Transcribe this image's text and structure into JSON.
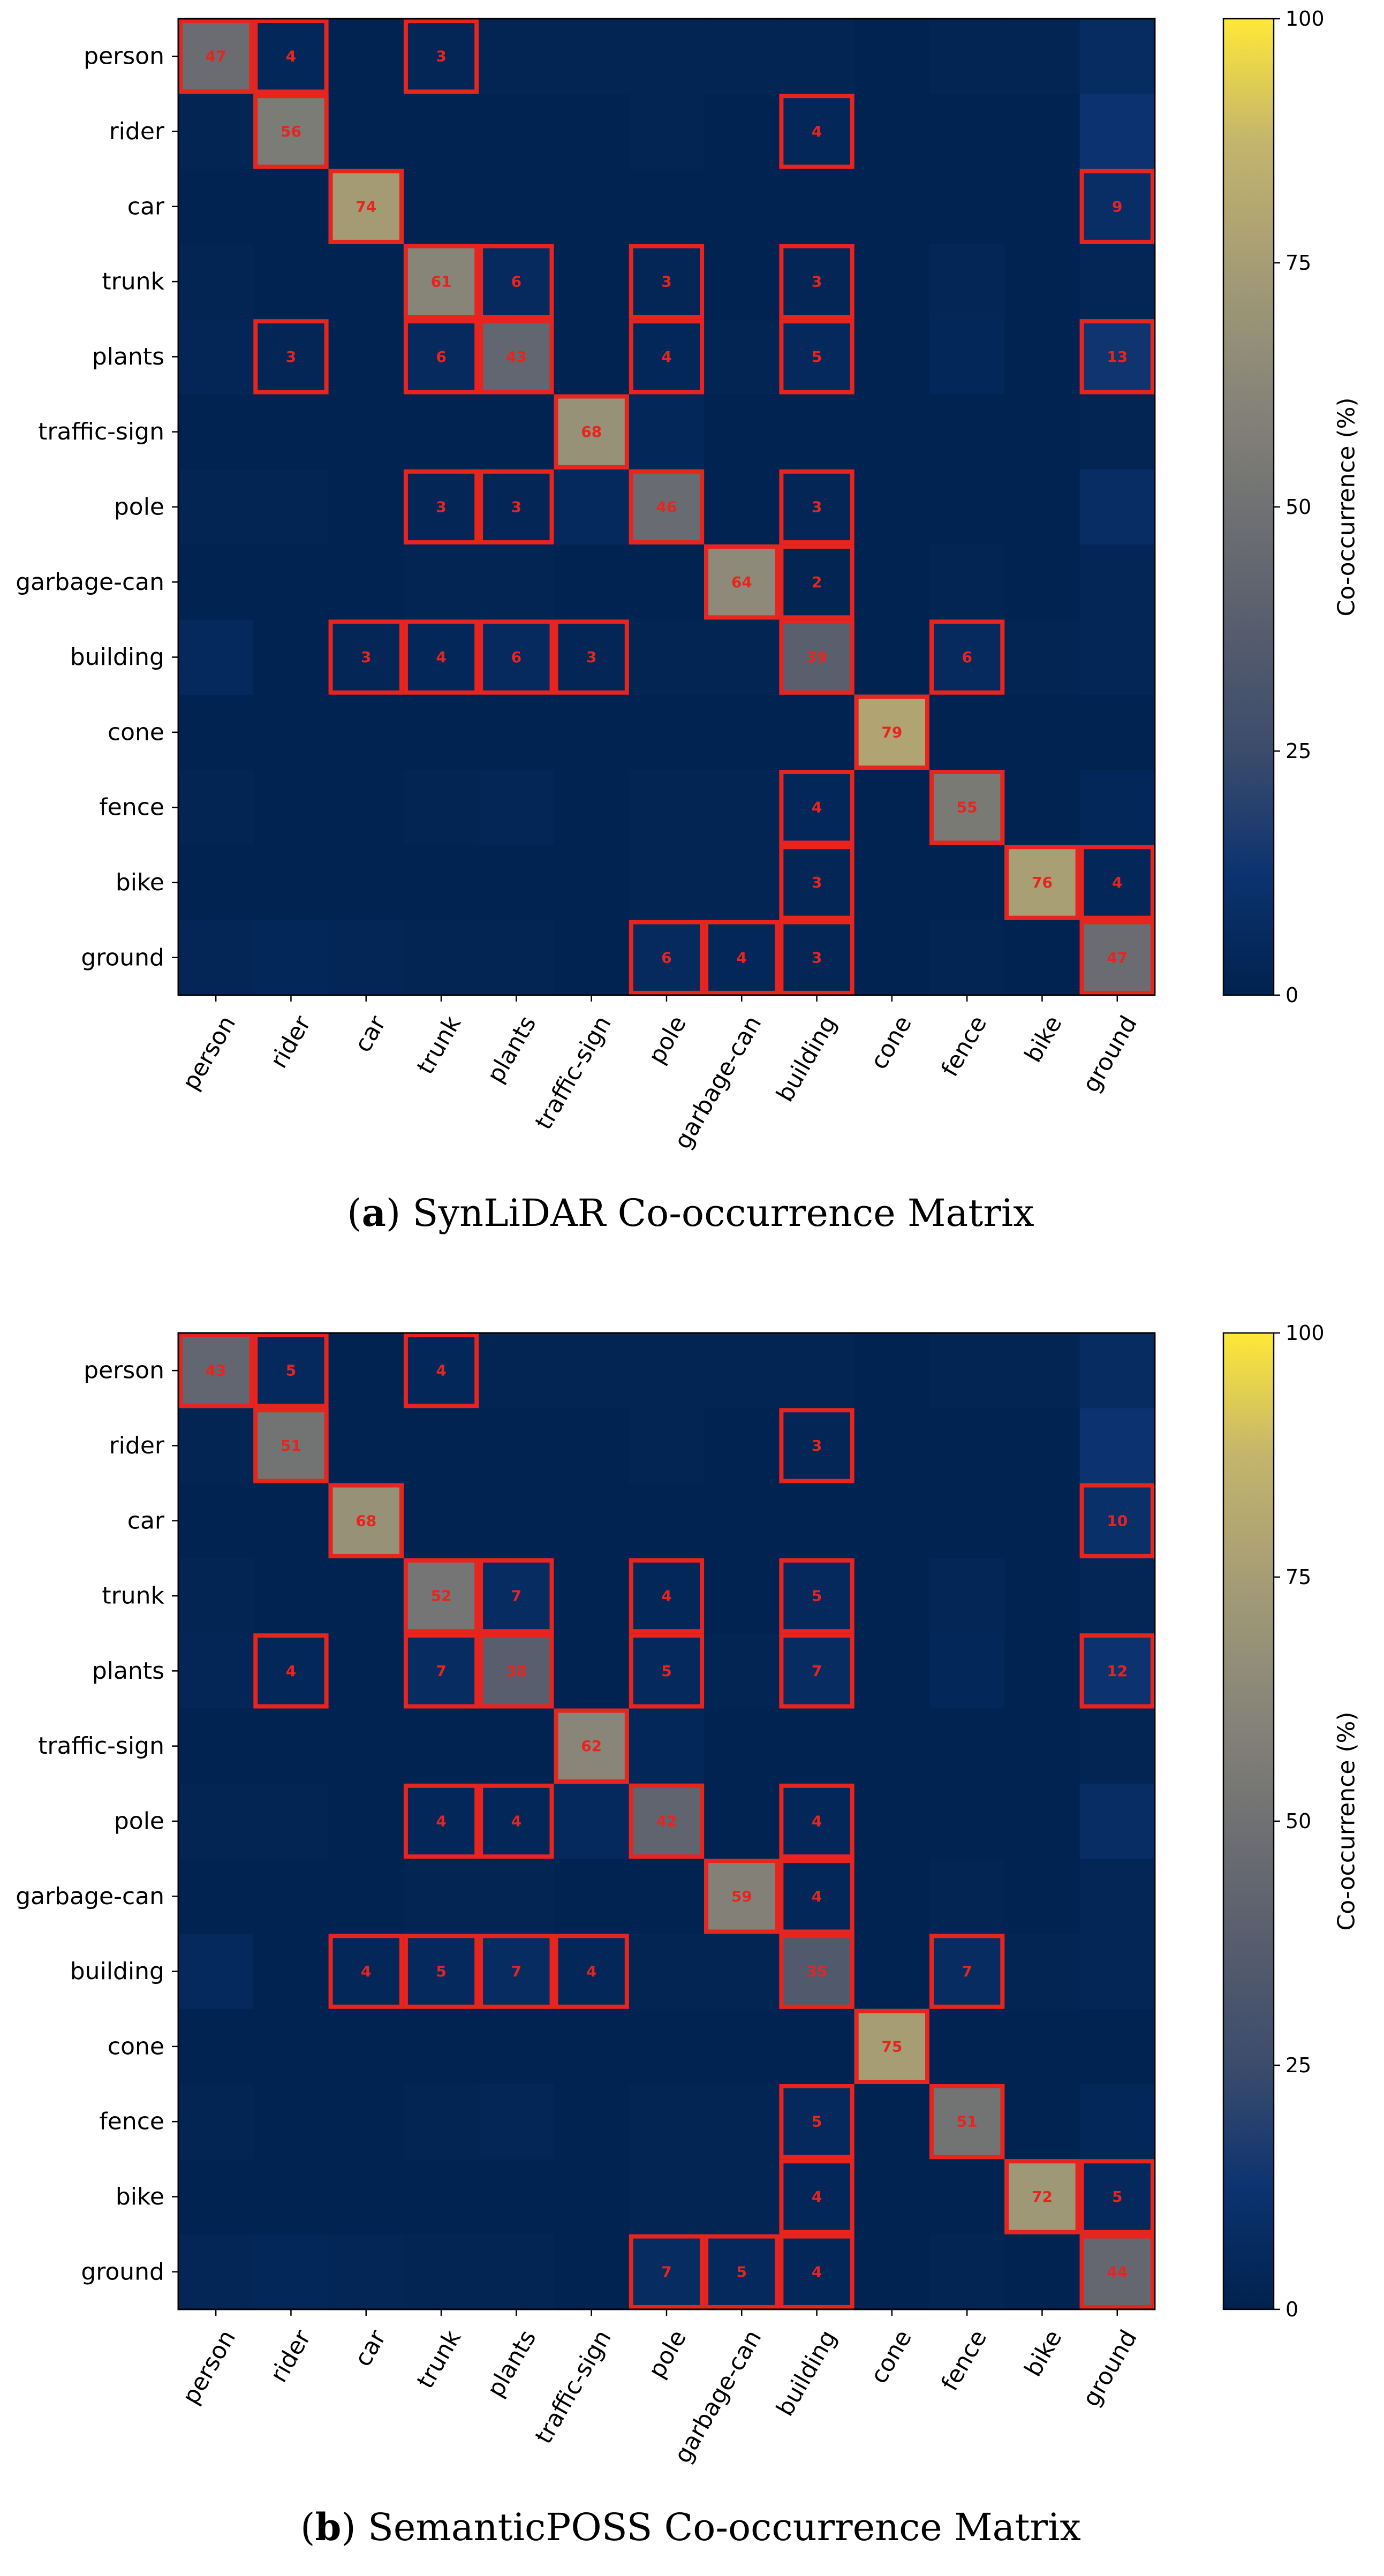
{
  "chart_data": [
    {
      "type": "heatmap",
      "caption_letter": "a",
      "caption_text": " SynLiDAR Co-occurrence Matrix",
      "row_labels": [
        "person",
        "rider",
        "car",
        "trunk",
        "plants",
        "traffic-sign",
        "pole",
        "garbage-can",
        "building",
        "cone",
        "fence",
        "bike",
        "ground"
      ],
      "col_labels": [
        "person",
        "rider",
        "car",
        "trunk",
        "plants",
        "traffic-sign",
        "pole",
        "garbage-can",
        "building",
        "cone",
        "fence",
        "bike",
        "ground"
      ],
      "values": [
        [
          47,
          4,
          1,
          3,
          2,
          2,
          2,
          2,
          2,
          1,
          2,
          2,
          7
        ],
        [
          2,
          56,
          1,
          1,
          1,
          1,
          2,
          1,
          4,
          1,
          1,
          1,
          12
        ],
        [
          1,
          1,
          74,
          1,
          1,
          1,
          1,
          1,
          1,
          1,
          1,
          1,
          9
        ],
        [
          2,
          1,
          1,
          61,
          6,
          1,
          3,
          1,
          3,
          1,
          3,
          1,
          3
        ],
        [
          3,
          3,
          1,
          6,
          43,
          1,
          4,
          2,
          5,
          1,
          4,
          1,
          13
        ],
        [
          1,
          1,
          1,
          1,
          1,
          68,
          4,
          1,
          1,
          1,
          1,
          1,
          2
        ],
        [
          2,
          2,
          1,
          3,
          3,
          5,
          46,
          1,
          3,
          1,
          1,
          1,
          8
        ],
        [
          1,
          1,
          1,
          2,
          2,
          1,
          1,
          64,
          2,
          1,
          2,
          1,
          3
        ],
        [
          5,
          1,
          3,
          4,
          6,
          3,
          2,
          2,
          39,
          1,
          6,
          2,
          3
        ],
        [
          1,
          1,
          1,
          1,
          1,
          1,
          1,
          1,
          1,
          79,
          1,
          1,
          1
        ],
        [
          2,
          1,
          1,
          2,
          3,
          1,
          2,
          2,
          4,
          1,
          55,
          1,
          4
        ],
        [
          1,
          1,
          1,
          1,
          1,
          1,
          2,
          2,
          3,
          1,
          1,
          76,
          4
        ],
        [
          3,
          4,
          3,
          2,
          2,
          1,
          6,
          4,
          3,
          1,
          2,
          1,
          47
        ]
      ],
      "annotations": [
        [
          0,
          0,
          47
        ],
        [
          0,
          1,
          4
        ],
        [
          0,
          3,
          3
        ],
        [
          1,
          1,
          56
        ],
        [
          1,
          8,
          4
        ],
        [
          2,
          2,
          74
        ],
        [
          2,
          12,
          9
        ],
        [
          3,
          3,
          61
        ],
        [
          3,
          4,
          6
        ],
        [
          3,
          6,
          3
        ],
        [
          3,
          8,
          3
        ],
        [
          4,
          1,
          3
        ],
        [
          4,
          3,
          6
        ],
        [
          4,
          4,
          43
        ],
        [
          4,
          6,
          4
        ],
        [
          4,
          8,
          5
        ],
        [
          4,
          12,
          13
        ],
        [
          5,
          5,
          68
        ],
        [
          6,
          3,
          3
        ],
        [
          6,
          4,
          3
        ],
        [
          6,
          6,
          46
        ],
        [
          6,
          8,
          3
        ],
        [
          7,
          7,
          64
        ],
        [
          7,
          8,
          2
        ],
        [
          8,
          2,
          3
        ],
        [
          8,
          3,
          4
        ],
        [
          8,
          4,
          6
        ],
        [
          8,
          5,
          3
        ],
        [
          8,
          8,
          39
        ],
        [
          8,
          10,
          6
        ],
        [
          9,
          9,
          79
        ],
        [
          10,
          8,
          4
        ],
        [
          10,
          10,
          55
        ],
        [
          11,
          8,
          3
        ],
        [
          11,
          11,
          76
        ],
        [
          11,
          12,
          4
        ],
        [
          12,
          6,
          6
        ],
        [
          12,
          7,
          4
        ],
        [
          12,
          8,
          3
        ],
        [
          12,
          12,
          47
        ]
      ],
      "vmin": 0,
      "vmax": 100,
      "colorbar_ticks": [
        0,
        25,
        50,
        75,
        100
      ],
      "colorbar_label": "Co-occurrence (%)",
      "colormap": "cividis",
      "highlight_color": "#e8241f"
    },
    {
      "type": "heatmap",
      "caption_letter": "b",
      "caption_text": " SemanticPOSS Co-occurrence Matrix",
      "row_labels": [
        "person",
        "rider",
        "car",
        "trunk",
        "plants",
        "traffic-sign",
        "pole",
        "garbage-can",
        "building",
        "cone",
        "fence",
        "bike",
        "ground"
      ],
      "col_labels": [
        "person",
        "rider",
        "car",
        "trunk",
        "plants",
        "traffic-sign",
        "pole",
        "garbage-can",
        "building",
        "cone",
        "fence",
        "bike",
        "ground"
      ],
      "values": [
        [
          43,
          5,
          1,
          4,
          2,
          2,
          2,
          2,
          2,
          1,
          2,
          2,
          7
        ],
        [
          2,
          51,
          1,
          1,
          1,
          1,
          2,
          1,
          3,
          1,
          1,
          1,
          12
        ],
        [
          1,
          1,
          68,
          1,
          1,
          1,
          1,
          1,
          1,
          1,
          1,
          1,
          10
        ],
        [
          2,
          1,
          1,
          52,
          7,
          1,
          4,
          1,
          5,
          1,
          3,
          1,
          3
        ],
        [
          3,
          4,
          1,
          7,
          38,
          1,
          5,
          2,
          7,
          1,
          4,
          1,
          12
        ],
        [
          1,
          1,
          1,
          1,
          1,
          62,
          4,
          1,
          1,
          1,
          1,
          1,
          2
        ],
        [
          2,
          2,
          1,
          4,
          4,
          5,
          42,
          1,
          4,
          1,
          1,
          1,
          8
        ],
        [
          1,
          1,
          1,
          2,
          2,
          1,
          1,
          59,
          4,
          1,
          2,
          1,
          3
        ],
        [
          5,
          1,
          4,
          5,
          7,
          4,
          2,
          2,
          35,
          1,
          7,
          2,
          3
        ],
        [
          1,
          1,
          1,
          1,
          1,
          1,
          1,
          1,
          1,
          75,
          1,
          1,
          1
        ],
        [
          2,
          1,
          1,
          2,
          3,
          1,
          2,
          2,
          5,
          1,
          51,
          1,
          4
        ],
        [
          1,
          1,
          1,
          1,
          1,
          1,
          2,
          2,
          4,
          1,
          1,
          72,
          5
        ],
        [
          3,
          4,
          3,
          2,
          2,
          1,
          7,
          5,
          4,
          1,
          2,
          1,
          44
        ]
      ],
      "annotations": [
        [
          0,
          0,
          43
        ],
        [
          0,
          1,
          5
        ],
        [
          0,
          3,
          4
        ],
        [
          1,
          1,
          51
        ],
        [
          1,
          8,
          3
        ],
        [
          2,
          2,
          68
        ],
        [
          2,
          12,
          10
        ],
        [
          3,
          3,
          52
        ],
        [
          3,
          4,
          7
        ],
        [
          3,
          6,
          4
        ],
        [
          3,
          8,
          5
        ],
        [
          4,
          1,
          4
        ],
        [
          4,
          3,
          7
        ],
        [
          4,
          4,
          38
        ],
        [
          4,
          6,
          5
        ],
        [
          4,
          8,
          7
        ],
        [
          4,
          12,
          12
        ],
        [
          5,
          5,
          62
        ],
        [
          6,
          3,
          4
        ],
        [
          6,
          4,
          4
        ],
        [
          6,
          6,
          42
        ],
        [
          6,
          8,
          4
        ],
        [
          7,
          7,
          59
        ],
        [
          7,
          8,
          4
        ],
        [
          8,
          2,
          4
        ],
        [
          8,
          3,
          5
        ],
        [
          8,
          4,
          7
        ],
        [
          8,
          5,
          4
        ],
        [
          8,
          8,
          35
        ],
        [
          8,
          10,
          7
        ],
        [
          9,
          9,
          75
        ],
        [
          10,
          8,
          5
        ],
        [
          10,
          10,
          51
        ],
        [
          11,
          8,
          4
        ],
        [
          11,
          11,
          72
        ],
        [
          11,
          12,
          5
        ],
        [
          12,
          6,
          7
        ],
        [
          12,
          7,
          5
        ],
        [
          12,
          8,
          4
        ],
        [
          12,
          12,
          44
        ]
      ],
      "vmin": 0,
      "vmax": 100,
      "colorbar_ticks": [
        0,
        25,
        50,
        75,
        100
      ],
      "colorbar_label": "Co-occurrence (%)",
      "colormap": "cividis",
      "highlight_color": "#e8241f"
    }
  ]
}
